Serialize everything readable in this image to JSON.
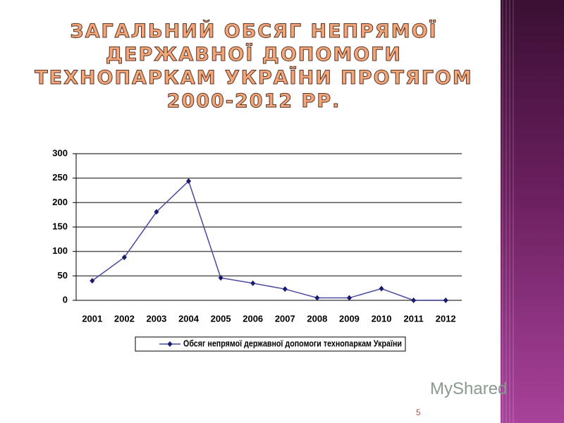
{
  "chart_data": {
    "type": "line",
    "title": "ЗАГАЛЬНИЙ ОБСЯГ НЕПРЯМОЇ ДЕРЖАВНОЇ ДОПОМОГИ ТЕХНОПАРКАМ УКРАЇНИ ПРОТЯГОМ 2000-2012 РР.",
    "categories": [
      "2001",
      "2002",
      "2003",
      "2004",
      "2005",
      "2006",
      "2007",
      "2008",
      "2009",
      "2010",
      "2011",
      "2012"
    ],
    "series": [
      {
        "name": "Обсяг непрямої державної допомоги технопаркам України",
        "color": "#4a4aa0",
        "values": [
          40,
          88,
          181,
          244,
          46,
          35,
          23,
          5,
          5,
          24,
          0,
          0
        ]
      }
    ],
    "ylim": [
      0,
      300
    ],
    "yticks": [
      0,
      50,
      100,
      150,
      200,
      250,
      300
    ],
    "grid": true,
    "legend": "bottom"
  },
  "page_number": "5",
  "watermark": "MyShared"
}
